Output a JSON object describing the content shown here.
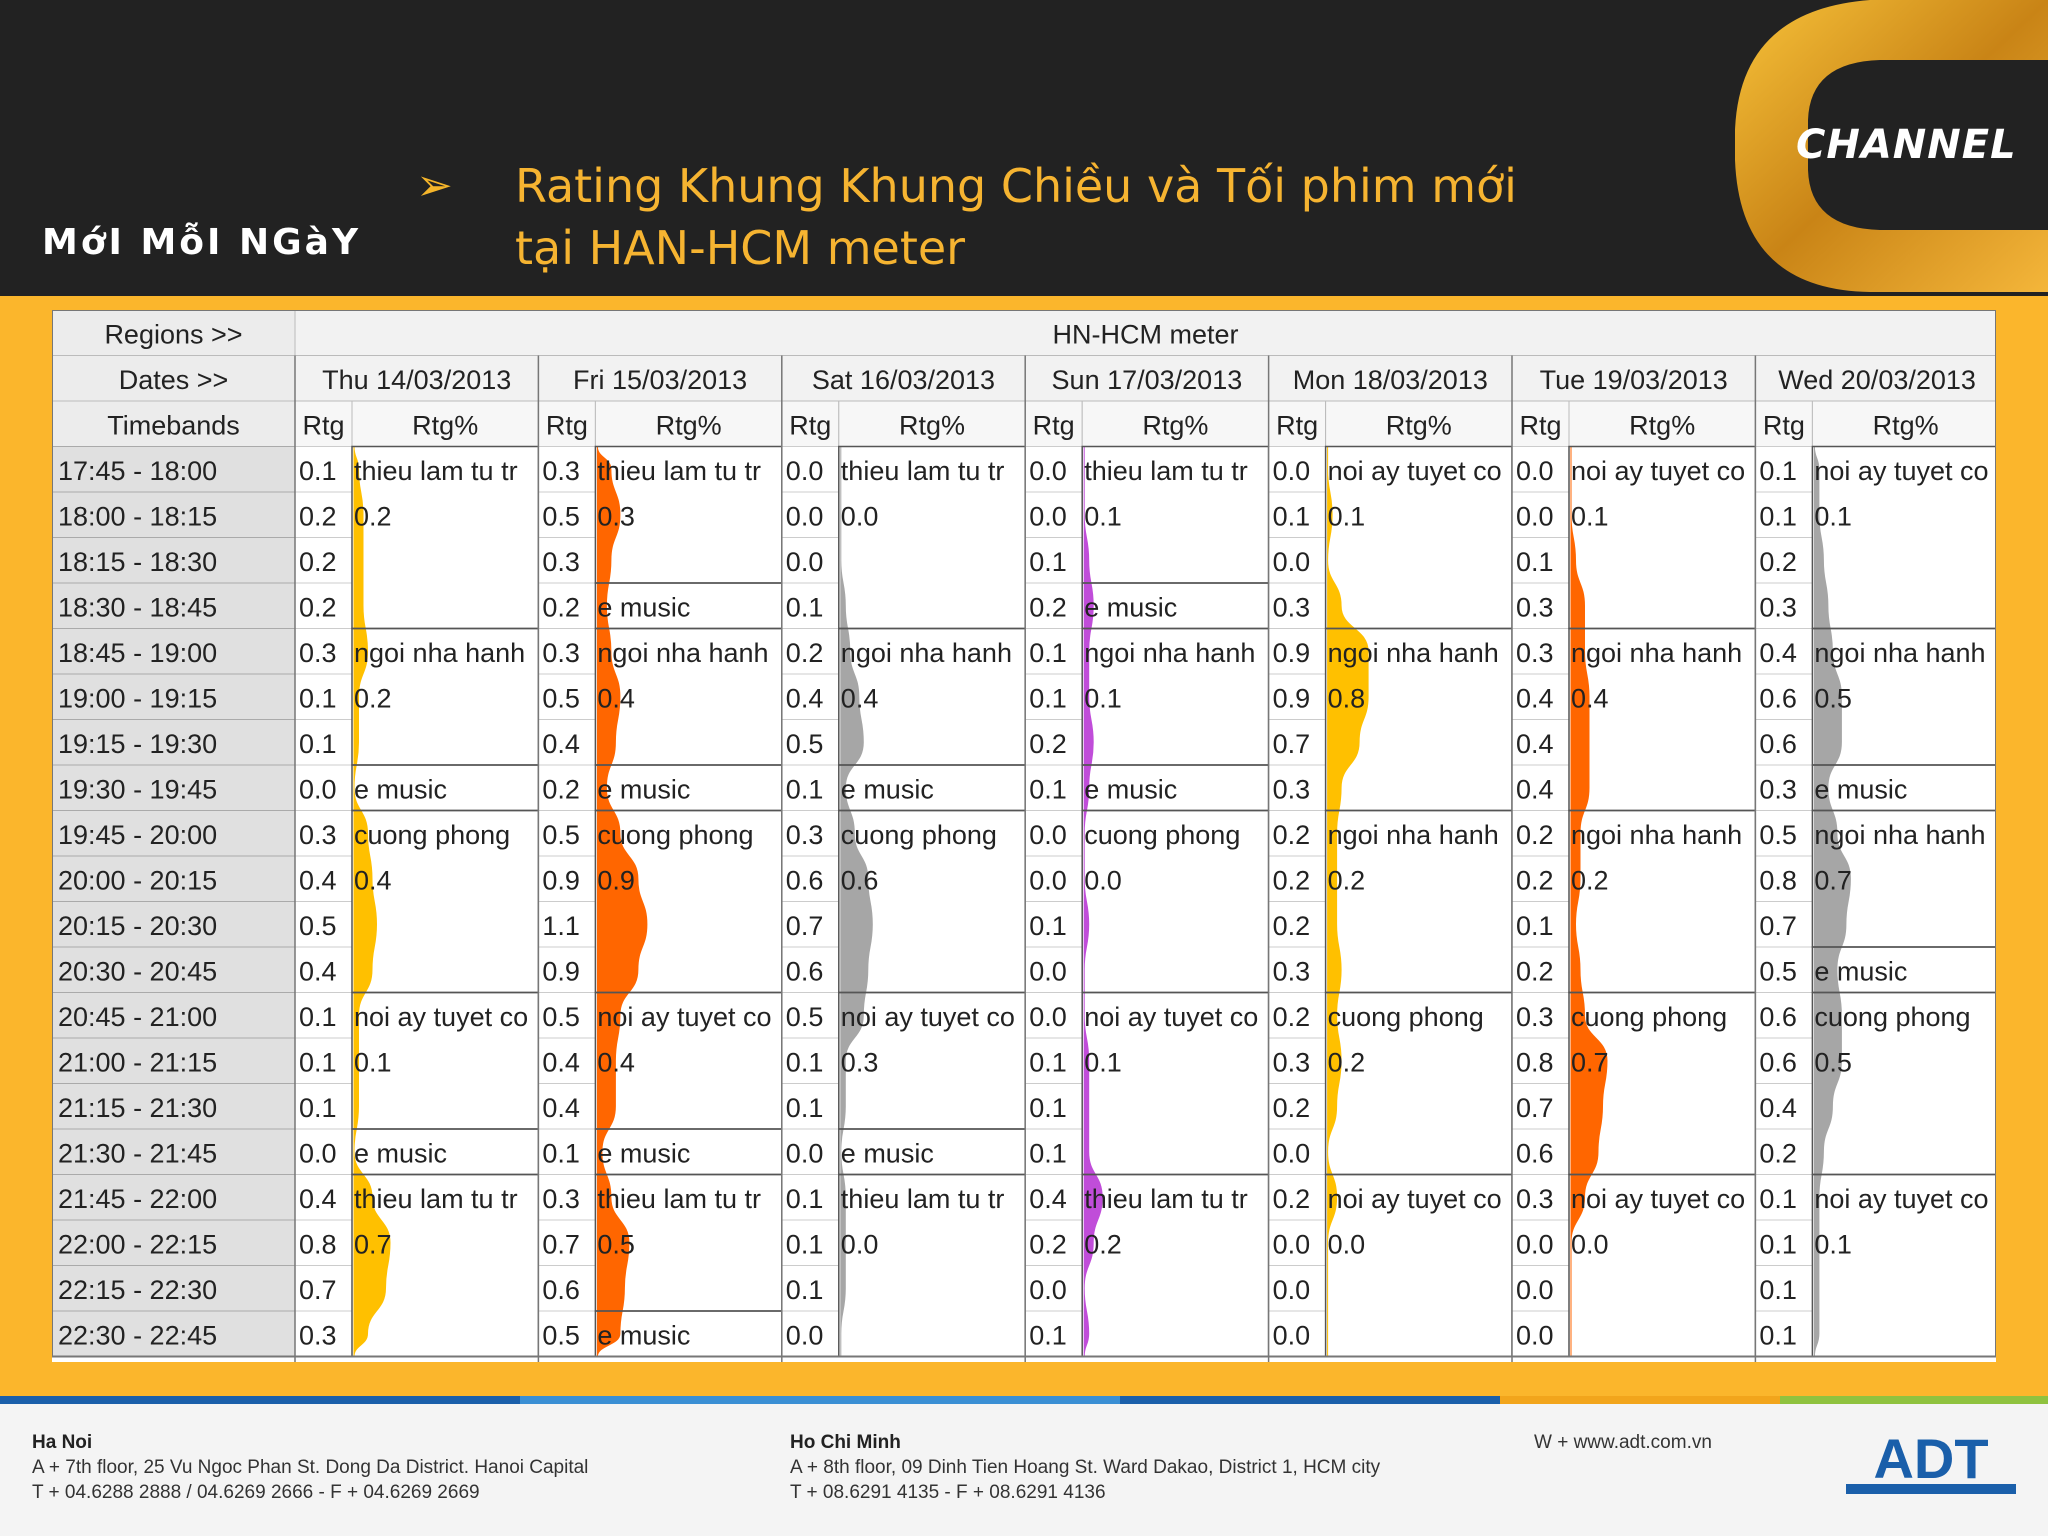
{
  "header": {
    "tagline": "MớI MỗI NGàY",
    "bullet": "➢",
    "title_line1": "Rating Khung Khung Chiều và Tối phim mới",
    "title_line2": "tại HAN-HCM meter",
    "logo_text": "CHANNEL"
  },
  "table": {
    "regions_label": "Regions >>",
    "region": "HN-HCM meter",
    "dates_label": "Dates >>",
    "timebands_label": "Timebands",
    "rtg_label": "Rtg",
    "rtgpct_label": "Rtg%",
    "dates": [
      "Thu 14/03/2013",
      "Fri 15/03/2013",
      "Sat 16/03/2013",
      "Sun 17/03/2013",
      "Mon 18/03/2013",
      "Tue 19/03/2013",
      "Wed 20/03/2013"
    ],
    "day_colors": [
      "#ffc000",
      "#ff6600",
      "#a6a6a6",
      "#c04dd9",
      "#ffc000",
      "#ff6600",
      "#a6a6a6"
    ],
    "timebands": [
      "17:45 - 18:00",
      "18:00 - 18:15",
      "18:15 - 18:30",
      "18:30 - 18:45",
      "18:45 - 19:00",
      "19:00 - 19:15",
      "19:15 - 19:30",
      "19:30 - 19:45",
      "19:45 - 20:00",
      "20:00 - 20:15",
      "20:15 - 20:30",
      "20:30 - 20:45",
      "20:45 - 21:00",
      "21:00 - 21:15",
      "21:15 - 21:30",
      "21:30 - 21:45",
      "21:45 - 22:00",
      "22:00 - 22:15",
      "22:15 - 22:30",
      "22:30 - 22:45"
    ],
    "rtg": [
      [
        0.1,
        0.2,
        0.2,
        0.2,
        0.3,
        0.1,
        0.1,
        0.0,
        0.3,
        0.4,
        0.5,
        0.4,
        0.1,
        0.1,
        0.1,
        0.0,
        0.4,
        0.8,
        0.7,
        0.3
      ],
      [
        0.3,
        0.5,
        0.3,
        0.2,
        0.3,
        0.5,
        0.4,
        0.2,
        0.5,
        0.9,
        1.1,
        0.9,
        0.5,
        0.4,
        0.4,
        0.1,
        0.3,
        0.7,
        0.6,
        0.5
      ],
      [
        0.0,
        0.0,
        0.0,
        0.1,
        0.2,
        0.4,
        0.5,
        0.1,
        0.3,
        0.6,
        0.7,
        0.6,
        0.5,
        0.1,
        0.1,
        0.0,
        0.1,
        0.1,
        0.1,
        0.0
      ],
      [
        0.0,
        0.0,
        0.1,
        0.2,
        0.1,
        0.1,
        0.2,
        0.1,
        0.0,
        0.0,
        0.1,
        0.0,
        0.0,
        0.1,
        0.1,
        0.1,
        0.4,
        0.2,
        0.0,
        0.1
      ],
      [
        0.0,
        0.1,
        0.0,
        0.3,
        0.9,
        0.9,
        0.7,
        0.3,
        0.2,
        0.2,
        0.2,
        0.3,
        0.2,
        0.3,
        0.2,
        0.0,
        0.2,
        0.0,
        0.0,
        0.0
      ],
      [
        0.0,
        0.0,
        0.1,
        0.3,
        0.3,
        0.4,
        0.4,
        0.4,
        0.2,
        0.2,
        0.1,
        0.2,
        0.3,
        0.8,
        0.7,
        0.6,
        0.3,
        0.0,
        0.0,
        0.0
      ],
      [
        0.1,
        0.1,
        0.2,
        0.3,
        0.4,
        0.6,
        0.6,
        0.3,
        0.5,
        0.8,
        0.7,
        0.5,
        0.6,
        0.6,
        0.4,
        0.2,
        0.1,
        0.1,
        0.1,
        0.1
      ]
    ],
    "programs": [
      [
        {
          "start": 0,
          "len": 4,
          "name": "thieu lam tu tr",
          "val": "0.2"
        },
        {
          "start": 4,
          "len": 3,
          "name": "ngoi nha hanh",
          "val": "0.2"
        },
        {
          "start": 7,
          "len": 1,
          "name": "e music",
          "val": ""
        },
        {
          "start": 8,
          "len": 4,
          "name": "cuong phong",
          "val": "0.4"
        },
        {
          "start": 12,
          "len": 3,
          "name": "noi ay tuyet co",
          "val": "0.1"
        },
        {
          "start": 15,
          "len": 1,
          "name": "e music",
          "val": ""
        },
        {
          "start": 16,
          "len": 4,
          "name": "thieu lam tu tr",
          "val": "0.7"
        }
      ],
      [
        {
          "start": 0,
          "len": 3,
          "name": "thieu lam tu tr",
          "val": "0.3"
        },
        {
          "start": 3,
          "len": 1,
          "name": "e music",
          "val": ""
        },
        {
          "start": 4,
          "len": 3,
          "name": "ngoi nha hanh",
          "val": "0.4"
        },
        {
          "start": 7,
          "len": 1,
          "name": "e music",
          "val": ""
        },
        {
          "start": 8,
          "len": 4,
          "name": "cuong phong",
          "val": "0.9"
        },
        {
          "start": 12,
          "len": 3,
          "name": "noi ay tuyet co",
          "val": "0.4"
        },
        {
          "start": 15,
          "len": 1,
          "name": "e music",
          "val": ""
        },
        {
          "start": 16,
          "len": 3,
          "name": "thieu lam tu tr",
          "val": "0.5"
        },
        {
          "start": 19,
          "len": 1,
          "name": "e music",
          "val": ""
        }
      ],
      [
        {
          "start": 0,
          "len": 4,
          "name": "thieu lam tu tr",
          "val": "0.0"
        },
        {
          "start": 4,
          "len": 3,
          "name": "ngoi nha hanh",
          "val": "0.4"
        },
        {
          "start": 7,
          "len": 1,
          "name": "e music",
          "val": ""
        },
        {
          "start": 8,
          "len": 4,
          "name": "cuong phong",
          "val": "0.6"
        },
        {
          "start": 12,
          "len": 3,
          "name": "noi ay tuyet co",
          "val": "0.3"
        },
        {
          "start": 15,
          "len": 1,
          "name": "e music",
          "val": ""
        },
        {
          "start": 16,
          "len": 4,
          "name": "thieu lam tu tr",
          "val": "0.0"
        }
      ],
      [
        {
          "start": 0,
          "len": 3,
          "name": "thieu lam tu tr",
          "val": "0.1"
        },
        {
          "start": 3,
          "len": 1,
          "name": "e music",
          "val": ""
        },
        {
          "start": 4,
          "len": 3,
          "name": "ngoi nha hanh",
          "val": "0.1"
        },
        {
          "start": 7,
          "len": 1,
          "name": "e music",
          "val": ""
        },
        {
          "start": 8,
          "len": 4,
          "name": "cuong phong",
          "val": "0.0"
        },
        {
          "start": 12,
          "len": 4,
          "name": "noi ay tuyet co",
          "val": "0.1"
        },
        {
          "start": 16,
          "len": 4,
          "name": "thieu lam tu tr",
          "val": "0.2"
        }
      ],
      [
        {
          "start": 0,
          "len": 4,
          "name": "noi ay tuyet co",
          "val": "0.1"
        },
        {
          "start": 4,
          "len": 4,
          "name": "ngoi nha hanh",
          "val": "0.8"
        },
        {
          "start": 8,
          "len": 4,
          "name": "ngoi nha hanh",
          "val": "0.2"
        },
        {
          "start": 12,
          "len": 4,
          "name": "cuong phong",
          "val": "0.2"
        },
        {
          "start": 16,
          "len": 4,
          "name": "noi ay tuyet co",
          "val": "0.0"
        }
      ],
      [
        {
          "start": 0,
          "len": 4,
          "name": "noi ay tuyet co",
          "val": "0.1"
        },
        {
          "start": 4,
          "len": 4,
          "name": "ngoi nha hanh",
          "val": "0.4"
        },
        {
          "start": 8,
          "len": 4,
          "name": "ngoi nha hanh",
          "val": "0.2"
        },
        {
          "start": 12,
          "len": 4,
          "name": "cuong phong",
          "val": "0.7"
        },
        {
          "start": 16,
          "len": 4,
          "name": "noi ay tuyet co",
          "val": "0.0"
        }
      ],
      [
        {
          "start": 0,
          "len": 4,
          "name": "noi ay tuyet co",
          "val": "0.1"
        },
        {
          "start": 4,
          "len": 3,
          "name": "ngoi nha hanh",
          "val": "0.5"
        },
        {
          "start": 7,
          "len": 1,
          "name": "e music",
          "val": ""
        },
        {
          "start": 8,
          "len": 3,
          "name": "ngoi nha hanh",
          "val": "0.7"
        },
        {
          "start": 11,
          "len": 1,
          "name": "e music",
          "val": ""
        },
        {
          "start": 12,
          "len": 4,
          "name": "cuong phong",
          "val": "0.5"
        },
        {
          "start": 16,
          "len": 4,
          "name": "noi ay tuyet co",
          "val": "0.1"
        }
      ]
    ]
  },
  "footer": {
    "hanoi_city": "Ha Noi",
    "hanoi_addr": "A + 7th floor, 25 Vu Ngoc Phan St. Dong Da District. Hanoi Capital",
    "hanoi_phone": "T + 04.6288 2888 / 04.6269 2666 - F + 04.6269 2669",
    "hcm_city": "Ho Chi Minh",
    "hcm_addr": "A + 8th floor, 09 Dinh Tien Hoang St. Ward Dakao, District 1, HCM city",
    "hcm_phone": "T + 08.6291 4135 - F + 08.6291 4136",
    "web": "W + www.adt.com.vn",
    "logo_text": "ADT",
    "brand_colors": [
      "#1a5faa",
      "#3a8fd4",
      "#f2a51c",
      "#8fc23f"
    ]
  }
}
